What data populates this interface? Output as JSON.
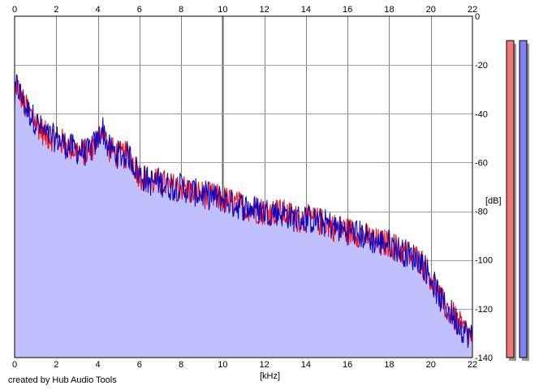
{
  "chart_data": {
    "type": "area",
    "xlabel": "[kHz]",
    "ylabel": "[dB]",
    "xlim": [
      0,
      22
    ],
    "ylim": [
      -140,
      0
    ],
    "x_ticks": [
      0,
      2,
      4,
      6,
      8,
      10,
      12,
      14,
      16,
      18,
      20,
      22
    ],
    "y_ticks": [
      0,
      -20,
      -40,
      -60,
      -80,
      -100,
      -120,
      -140
    ],
    "grid": true,
    "colors": {
      "fill": "#c0c0ff",
      "channel_a": "#ff0000",
      "channel_b": "#0000c8",
      "meter_a": "#f07878",
      "meter_b": "#8080f0"
    },
    "spectrum_envelope": {
      "x": [
        0,
        0.1,
        0.5,
        1.0,
        1.5,
        2.0,
        2.5,
        3.0,
        3.5,
        4.0,
        4.2,
        4.5,
        5.0,
        5.5,
        6.0,
        6.5,
        7.0,
        7.5,
        8.0,
        8.5,
        9.0,
        9.5,
        10.0,
        10.5,
        11.0,
        11.5,
        12.0,
        12.5,
        13.0,
        13.5,
        14.0,
        14.5,
        15.0,
        15.5,
        16.0,
        16.5,
        17.0,
        17.5,
        18.0,
        18.5,
        19.0,
        19.5,
        20.0,
        20.3,
        20.5,
        21.0,
        21.5,
        22.0
      ],
      "y": [
        -35,
        -28,
        -37,
        -43,
        -49,
        -50,
        -53,
        -55,
        -56,
        -51,
        -45,
        -54,
        -57,
        -57,
        -65,
        -68,
        -68,
        -70,
        -70,
        -72,
        -73,
        -74,
        -75,
        -77,
        -78,
        -79,
        -80,
        -80,
        -81,
        -83,
        -83,
        -84,
        -85,
        -87,
        -88,
        -89,
        -91,
        -93,
        -93,
        -96,
        -98,
        -100,
        -107,
        -113,
        -117,
        -122,
        -128,
        -132
      ]
    },
    "meters": {
      "scale_min": -140,
      "scale_max": 0,
      "levels": [
        -10,
        -10
      ]
    }
  },
  "footer": {
    "credit": "created by Hub Audio Tools"
  }
}
